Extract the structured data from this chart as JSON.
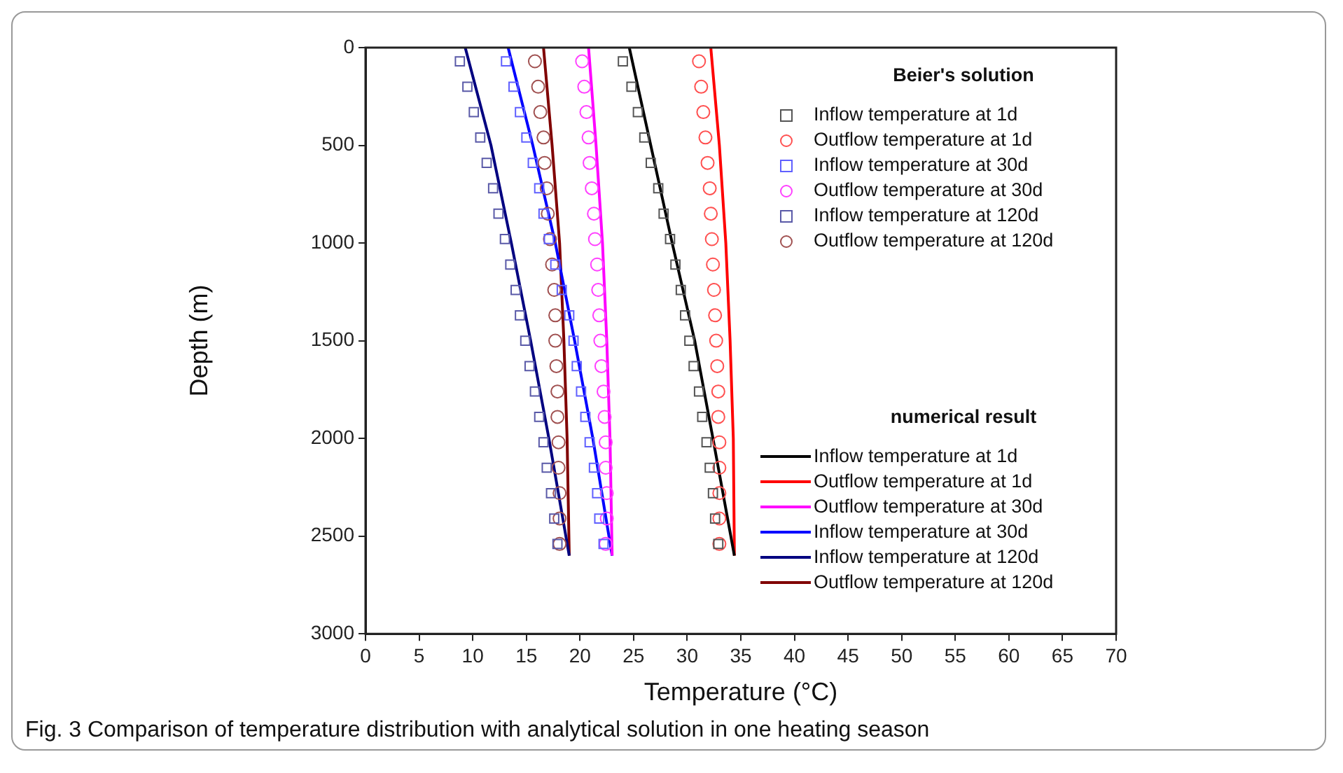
{
  "chart_data": {
    "type": "line",
    "xlabel": "Temperature (°C)",
    "ylabel": "Depth (m)",
    "xlim": [
      0,
      70
    ],
    "xticks": [
      0,
      5,
      10,
      15,
      20,
      25,
      30,
      35,
      40,
      45,
      50,
      55,
      60,
      65,
      70
    ],
    "ylim": [
      3000,
      0
    ],
    "yticks": [
      0,
      500,
      1000,
      1500,
      2000,
      2500,
      3000
    ],
    "legend": "right",
    "legend_title": "Beier's solution",
    "annotations": [
      "numerical result",
      "Fig. 3  Comparison of temperature distribution with analytical solution in one heating season"
    ],
    "series": [
      {
        "type": "scatter",
        "marker": "square",
        "name": "Inflow temperature at 1d",
        "color": "#555555",
        "x": [
          24.0,
          24.8,
          25.4,
          26.0,
          26.6,
          27.3,
          27.8,
          28.4,
          28.9,
          29.4,
          29.8,
          30.2,
          30.6,
          31.1,
          31.4,
          31.8,
          32.1,
          32.4,
          32.6,
          32.9
        ],
        "values": [
          70,
          200,
          330,
          460,
          590,
          720,
          850,
          980,
          1110,
          1240,
          1370,
          1500,
          1630,
          1760,
          1890,
          2020,
          2150,
          2280,
          2410,
          2540
        ]
      },
      {
        "type": "scatter",
        "marker": "circle",
        "name": "Outflow temperature at 1d",
        "color": "#ff5050",
        "x": [
          31.1,
          31.3,
          31.5,
          31.7,
          31.9,
          32.1,
          32.2,
          32.3,
          32.4,
          32.5,
          32.6,
          32.7,
          32.8,
          32.9,
          32.9,
          33.0,
          33.0,
          33.0,
          33.0,
          33.0
        ],
        "values": [
          70,
          200,
          330,
          460,
          590,
          720,
          850,
          980,
          1110,
          1240,
          1370,
          1500,
          1630,
          1760,
          1890,
          2020,
          2150,
          2280,
          2410,
          2540
        ]
      },
      {
        "type": "scatter",
        "marker": "square",
        "name": "Inflow temperature at 30d",
        "color": "#6060ff",
        "x": [
          13.1,
          13.8,
          14.4,
          15.0,
          15.6,
          16.2,
          16.6,
          17.1,
          17.7,
          18.3,
          19.0,
          19.4,
          19.7,
          20.1,
          20.5,
          20.9,
          21.3,
          21.6,
          21.8,
          22.2
        ],
        "values": [
          70,
          200,
          330,
          460,
          590,
          720,
          850,
          980,
          1110,
          1240,
          1370,
          1500,
          1630,
          1760,
          1890,
          2020,
          2150,
          2280,
          2410,
          2540
        ]
      },
      {
        "type": "scatter",
        "marker": "circle",
        "name": "Outflow temperature at 30d",
        "color": "#ff40ff",
        "x": [
          20.2,
          20.4,
          20.6,
          20.8,
          20.9,
          21.1,
          21.3,
          21.4,
          21.6,
          21.7,
          21.8,
          21.9,
          22.0,
          22.2,
          22.3,
          22.4,
          22.4,
          22.5,
          22.5,
          22.4
        ],
        "values": [
          70,
          200,
          330,
          460,
          590,
          720,
          850,
          980,
          1110,
          1240,
          1370,
          1500,
          1630,
          1760,
          1890,
          2020,
          2150,
          2280,
          2410,
          2540
        ]
      },
      {
        "type": "scatter",
        "marker": "square",
        "name": "Inflow temperature at 120d",
        "color": "#5a5aa8",
        "x": [
          8.8,
          9.5,
          10.1,
          10.7,
          11.3,
          11.9,
          12.4,
          13.0,
          13.5,
          14.0,
          14.4,
          14.9,
          15.3,
          15.8,
          16.2,
          16.6,
          16.9,
          17.3,
          17.6,
          17.9
        ],
        "values": [
          70,
          200,
          330,
          460,
          590,
          720,
          850,
          980,
          1110,
          1240,
          1370,
          1500,
          1630,
          1760,
          1890,
          2020,
          2150,
          2280,
          2410,
          2540
        ]
      },
      {
        "type": "scatter",
        "marker": "circle",
        "name": "Outflow temperature at 120d",
        "color": "#a05050",
        "x": [
          15.8,
          16.1,
          16.3,
          16.6,
          16.7,
          16.9,
          17.0,
          17.2,
          17.4,
          17.6,
          17.7,
          17.7,
          17.8,
          17.9,
          17.9,
          18.0,
          18.0,
          18.1,
          18.1,
          18.1
        ],
        "values": [
          70,
          200,
          330,
          460,
          590,
          720,
          850,
          980,
          1110,
          1240,
          1370,
          1500,
          1630,
          1760,
          1890,
          2020,
          2150,
          2280,
          2410,
          2540
        ]
      },
      {
        "name": "Inflow temperature at 1d",
        "color": "#000000",
        "x": [
          24.6,
          26.6,
          28.6,
          30.7,
          32.4,
          34.4
        ],
        "values": [
          0,
          500,
          1000,
          1500,
          2000,
          2600
        ]
      },
      {
        "name": "Outflow temperature at 1d",
        "color": "#ff0000",
        "x": [
          32.2,
          33.0,
          33.6,
          34.0,
          34.3,
          34.4
        ],
        "values": [
          0,
          500,
          1000,
          1500,
          2000,
          2600
        ]
      },
      {
        "name": "Outflow temperature at 30d",
        "color": "#ff00ff",
        "x": [
          20.8,
          21.5,
          22.1,
          22.5,
          22.8,
          23.0
        ],
        "values": [
          0,
          500,
          1000,
          1500,
          2000,
          2600
        ]
      },
      {
        "name": "Inflow temperature at 30d",
        "color": "#0000ff",
        "x": [
          13.3,
          15.6,
          17.7,
          19.5,
          21.2,
          23.0
        ],
        "values": [
          0,
          500,
          1000,
          1500,
          2000,
          2600
        ]
      },
      {
        "name": "Inflow temperature at 120d",
        "color": "#000080",
        "x": [
          9.3,
          11.7,
          13.6,
          15.4,
          17.1,
          19.0
        ],
        "values": [
          0,
          500,
          1000,
          1500,
          2000,
          2600
        ]
      },
      {
        "name": "Outflow temperature at 120d",
        "color": "#800000",
        "x": [
          16.6,
          17.4,
          18.1,
          18.5,
          18.8,
          19.0
        ],
        "values": [
          0,
          500,
          1000,
          1500,
          2000,
          2600
        ]
      }
    ]
  }
}
